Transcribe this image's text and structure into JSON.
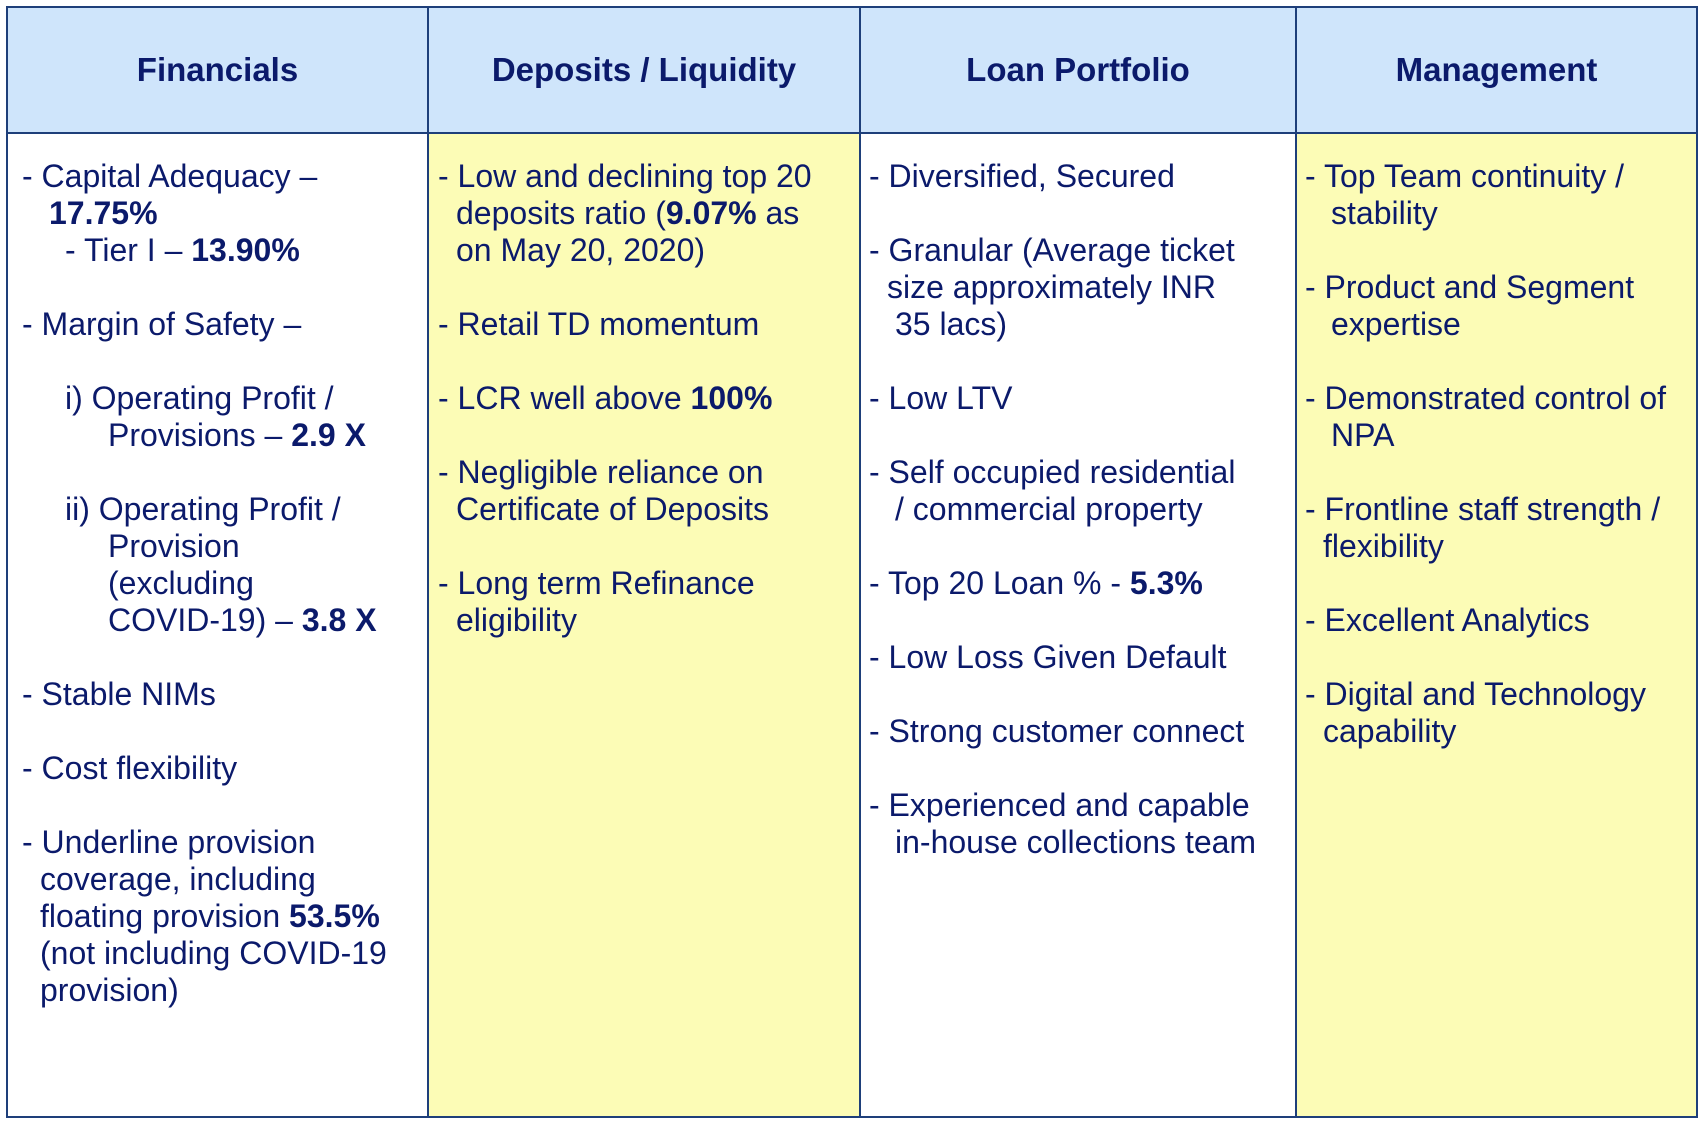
{
  "headers": {
    "financials": "Financials",
    "deposits": "Deposits / Liquidity",
    "loans": "Loan Portfolio",
    "management": "Management"
  },
  "financials": {
    "car_label": "-  Capital Adequacy –",
    "car_value": "17.75%",
    "tier1_label": "- Tier I – ",
    "tier1_value": "13.90%",
    "mos": "- Margin of Safety –",
    "op1_line1": "i)  Operating Profit /",
    "op1_line2": "Provisions – ",
    "op1_value": "2.9 X",
    "op2_line1": "ii)  Operating Profit /",
    "op2_line2": "Provision",
    "op2_line3": "(excluding",
    "op2_line4": "COVID-19) – ",
    "op2_value": "3.8 X",
    "nims": "- Stable NIMs",
    "cost": "- Cost flexibility",
    "upc_line1": "- Underline provision",
    "upc_line2": "coverage, including",
    "upc_line3": "floating provision ",
    "upc_value": "53.5%",
    "upc_line4": "(not including COVID-19",
    "upc_line5": "provision)"
  },
  "deposits": {
    "d1_line1": "- Low and declining top 20",
    "d1_line2a": "deposits ratio (",
    "d1_value": "9.07%",
    "d1_line2b": " as",
    "d1_line3": "on May 20, 2020)",
    "d2": "- Retail TD momentum",
    "d3_label": "- LCR well above ",
    "d3_value": "100%",
    "d4_line1": "- Negligible reliance on",
    "d4_line2": "Certificate of Deposits",
    "d5_line1": "- Long term Refinance",
    "d5_line2": "eligibility"
  },
  "loans": {
    "l1": "- Diversified, Secured",
    "l2_line1": "- Granular (Average ticket",
    "l2_line2": "size approximately INR",
    "l2_line3": "35 lacs)",
    "l3": "- Low LTV",
    "l4_line1": "- Self occupied residential",
    "l4_line2": "/ commercial property",
    "l5_label": "- Top 20 Loan % - ",
    "l5_value": "5.3%",
    "l6": "- Low Loss Given Default",
    "l7": "- Strong customer connect",
    "l8_line1": "- Experienced and capable",
    "l8_line2": "in-house collections team"
  },
  "management": {
    "m1_line1": "- Top Team continuity /",
    "m1_line2": "stability",
    "m2_line1": "- Product and Segment",
    "m2_line2": "expertise",
    "m3_line1": "- Demonstrated control of",
    "m3_line2": "NPA",
    "m4_line1": "- Frontline staff strength /",
    "m4_line2": "flexibility",
    "m5": "- Excellent Analytics",
    "m6_line1": "- Digital  and Technology",
    "m6_line2": "capability"
  },
  "colors": {
    "header_bg": "#cfe5fb",
    "yellow_bg": "#fcfcb6",
    "text": "#0b1a6b",
    "border": "#1e3f7a"
  }
}
